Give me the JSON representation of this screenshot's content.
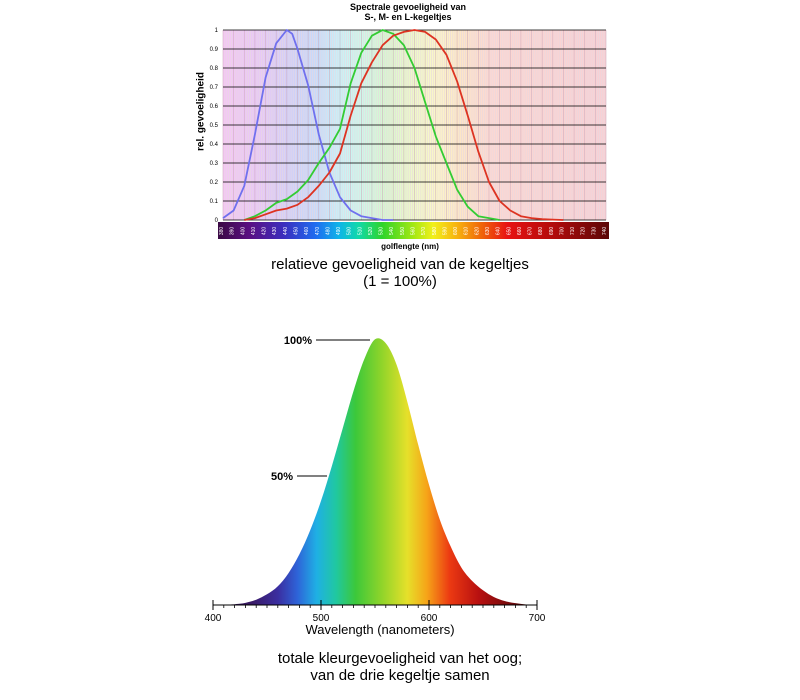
{
  "top_chart": {
    "title_line1": "Spectrale gevoeligheid van",
    "title_line2": "S-, M- en L-kegeltjes",
    "ylabel": "rel. gevoeligheid",
    "xlabel": "golflengte (nm)",
    "caption_line1": "relatieve gevoeligheid van de kegeltjes",
    "caption_line2": "(1 = 100%)"
  },
  "bottom_chart": {
    "xlabel": "Wavelength (nanometers)",
    "label_100": "100%",
    "label_50": "50%",
    "caption_line1": "totale kleurgevoeligheid van het oog;",
    "caption_line2": "van de drie kegeltje samen"
  },
  "chart_data": [
    {
      "type": "line",
      "title": "Spectrale gevoeligheid van S-, M- en L-kegeltjes",
      "xlabel": "golflengte (nm)",
      "ylabel": "rel. gevoeligheid",
      "xlim": [
        380,
        740
      ],
      "ylim": [
        0,
        1
      ],
      "yticks": [
        "0",
        "0.1",
        "0.2",
        "0.3",
        "0.4",
        "0.5",
        "0.6",
        "0.7",
        "0.8",
        "0.9",
        "1"
      ],
      "xticks": [
        380,
        390,
        400,
        410,
        420,
        430,
        440,
        450,
        460,
        470,
        480,
        490,
        500,
        510,
        520,
        530,
        540,
        550,
        560,
        570,
        580,
        590,
        600,
        610,
        620,
        630,
        640,
        650,
        660,
        670,
        680,
        690,
        700,
        710,
        720,
        730,
        740
      ],
      "grid": true,
      "series": [
        {
          "color": "#7070ee",
          "x": [
            380,
            390,
            400,
            410,
            420,
            430,
            440,
            445,
            450,
            460,
            470,
            480,
            490,
            500,
            510,
            520,
            530,
            540
          ],
          "y": [
            0.01,
            0.05,
            0.18,
            0.45,
            0.75,
            0.93,
            1.0,
            0.98,
            0.9,
            0.71,
            0.45,
            0.25,
            0.12,
            0.05,
            0.02,
            0.01,
            0.0,
            0.0
          ]
        },
        {
          "color": "#33cc33",
          "x": [
            400,
            410,
            420,
            430,
            440,
            450,
            460,
            470,
            480,
            490,
            500,
            510,
            520,
            530,
            540,
            550,
            560,
            570,
            580,
            590,
            600,
            610,
            620,
            630,
            640
          ],
          "y": [
            0.0,
            0.02,
            0.05,
            0.09,
            0.11,
            0.15,
            0.21,
            0.3,
            0.38,
            0.48,
            0.72,
            0.88,
            0.97,
            1.0,
            0.98,
            0.92,
            0.8,
            0.62,
            0.44,
            0.3,
            0.16,
            0.07,
            0.02,
            0.01,
            0.0
          ]
        },
        {
          "color": "#dd3322",
          "x": [
            400,
            410,
            420,
            430,
            440,
            450,
            460,
            470,
            480,
            490,
            500,
            510,
            520,
            530,
            540,
            550,
            560,
            570,
            580,
            590,
            600,
            610,
            620,
            630,
            640,
            650,
            660,
            670,
            680,
            690,
            700
          ],
          "y": [
            0.0,
            0.01,
            0.03,
            0.05,
            0.06,
            0.08,
            0.12,
            0.18,
            0.25,
            0.35,
            0.55,
            0.72,
            0.83,
            0.92,
            0.97,
            0.99,
            1.0,
            0.99,
            0.95,
            0.87,
            0.73,
            0.55,
            0.36,
            0.2,
            0.1,
            0.05,
            0.02,
            0.01,
            0.005,
            0.002,
            0.0
          ]
        }
      ]
    },
    {
      "type": "area",
      "xlabel": "Wavelength (nanometers)",
      "xlim": [
        400,
        700
      ],
      "xticks": [
        400,
        500,
        600,
        700
      ],
      "ylim": [
        0,
        1
      ],
      "x": [
        400,
        420,
        430,
        440,
        450,
        460,
        470,
        480,
        490,
        500,
        510,
        520,
        530,
        540,
        550,
        560,
        570,
        580,
        590,
        600,
        610,
        620,
        630,
        640,
        650,
        660,
        670,
        680,
        690,
        700
      ],
      "y": [
        0.0,
        0.003,
        0.008,
        0.02,
        0.04,
        0.07,
        0.12,
        0.19,
        0.28,
        0.39,
        0.52,
        0.66,
        0.8,
        0.92,
        0.995,
        0.98,
        0.9,
        0.76,
        0.6,
        0.45,
        0.32,
        0.22,
        0.14,
        0.09,
        0.055,
        0.03,
        0.015,
        0.007,
        0.002,
        0.0
      ],
      "annotations": [
        "100%",
        "50%"
      ]
    }
  ]
}
